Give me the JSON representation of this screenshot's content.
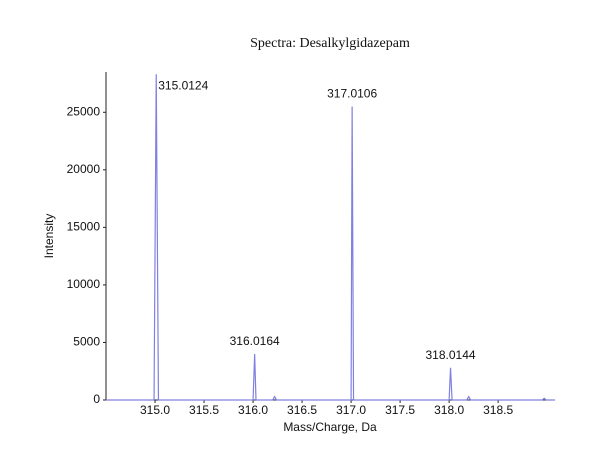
{
  "chart_data": {
    "type": "line",
    "title": "Spectra: Desalkylgidazepam",
    "x_label": "Mass/Charge, Da",
    "y_label": "Intensity",
    "color": "#8080e0",
    "x": [
      314.5,
      314.99,
      315.0124,
      315.035,
      316.0,
      316.0164,
      316.03,
      316.2,
      316.22,
      316.24,
      317.0,
      317.0106,
      317.025,
      318.0,
      318.0144,
      318.03,
      318.18,
      318.2,
      318.22,
      318.95,
      318.97,
      318.99,
      319.08
    ],
    "values": [
      0,
      0,
      28300,
      0,
      0,
      4000,
      0,
      0,
      300,
      0,
      0,
      25500,
      0,
      0,
      2800,
      0,
      0,
      300,
      0,
      0,
      150,
      0,
      0
    ],
    "annotations": [
      {
        "x": 315.0124,
        "y": 28300,
        "text": "315.0124"
      },
      {
        "x": 316.0164,
        "y": 4000,
        "text": "316.0164"
      },
      {
        "x": 317.0106,
        "y": 25500,
        "text": "317.0106"
      },
      {
        "x": 318.0144,
        "y": 2800,
        "text": "318.0144"
      }
    ],
    "xlim": [
      314.5,
      319.08
    ],
    "ylim": [
      0,
      28500
    ],
    "xticks": [
      {
        "value": 315,
        "label": "315.0"
      },
      315.5,
      {
        "value": 316,
        "label": "316.0"
      },
      316.5,
      {
        "value": 317,
        "label": "317.0"
      },
      317.5,
      {
        "value": 318,
        "label": "318.0"
      },
      318.5
    ],
    "yticks": [
      0,
      5000,
      10000,
      15000,
      20000,
      25000
    ]
  }
}
